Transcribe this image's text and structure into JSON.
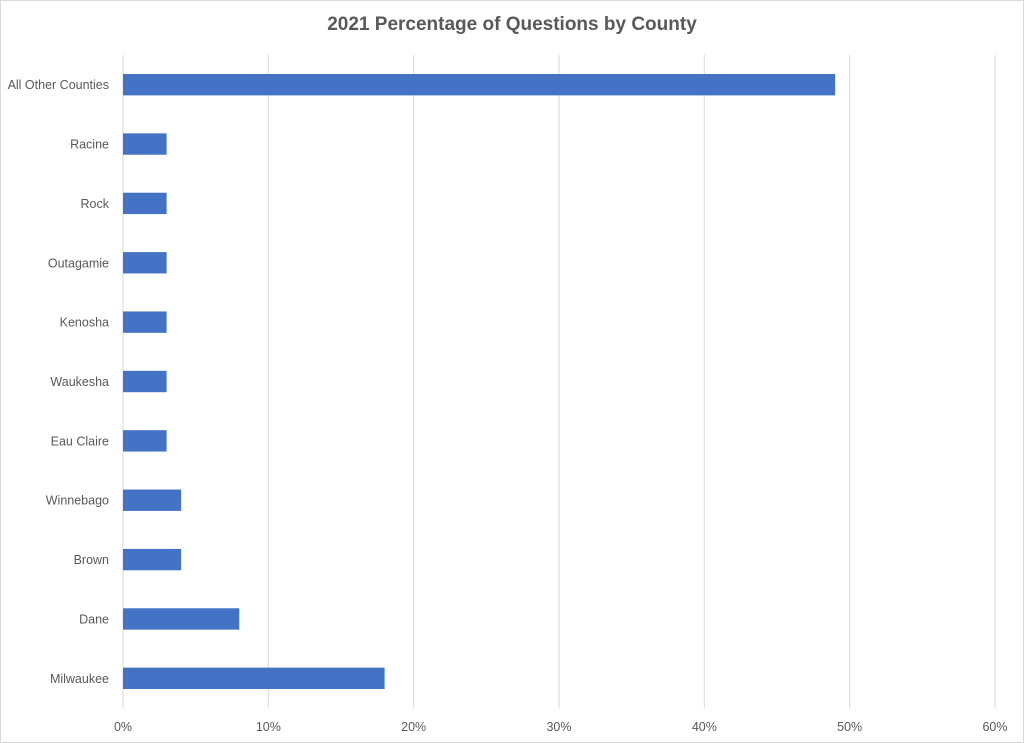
{
  "chart_data": {
    "type": "bar",
    "orientation": "horizontal",
    "title": "2021 Percentage of Questions by County",
    "xlabel": "",
    "ylabel": "",
    "categories": [
      "Milwaukee",
      "Dane",
      "Brown",
      "Winnebago",
      "Eau Claire",
      "Waukesha",
      "Kenosha",
      "Outagamie",
      "Rock",
      "Racine",
      "All Other Counties"
    ],
    "values": [
      18,
      8,
      4,
      4,
      3,
      3,
      3,
      3,
      3,
      3,
      49
    ],
    "value_unit": "%",
    "xlim": [
      0,
      60
    ],
    "x_ticks": [
      "0%",
      "10%",
      "20%",
      "30%",
      "40%",
      "50%",
      "60%"
    ],
    "x_tick_values": [
      0,
      10,
      20,
      30,
      40,
      50,
      60
    ],
    "grid": "vertical",
    "legend": "none",
    "bar_color": "#4472C4",
    "grid_color": "#d9d9d9",
    "text_color": "#595959"
  }
}
